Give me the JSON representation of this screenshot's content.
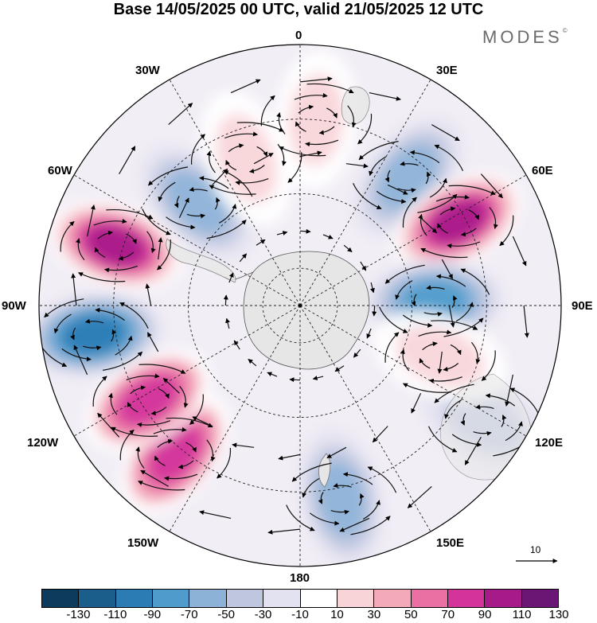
{
  "title": "Base 14/05/2025 00 UTC, valid 21/05/2025 12 UTC",
  "brand": "MODES",
  "brand_mark": "©",
  "longitude_labels": {
    "top": "0",
    "bottom": "180",
    "lon30w": "30W",
    "lon30e": "30E",
    "lon60w": "60W",
    "lon60e": "60E",
    "lon90w": "90W",
    "lon90e": "90E",
    "lon120w": "120W",
    "lon120e": "120E",
    "lon150w": "150W",
    "lon150e": "150E"
  },
  "reference_vector_label": "10",
  "colorbar": {
    "colors": [
      "#0c3b5e",
      "#1b5e8c",
      "#2b7bb5",
      "#4f9ccc",
      "#8db2d8",
      "#bfc6e0",
      "#e3e2f0",
      "#ffffff",
      "#f8d4d8",
      "#f3a9b8",
      "#ea70a4",
      "#d3339b",
      "#a71b89",
      "#6b1675"
    ],
    "tick_labels": [
      "-130",
      "-110",
      "-90",
      "-70",
      "-50",
      "-30",
      "-10",
      "10",
      "30",
      "50",
      "70",
      "90",
      "110",
      "130"
    ]
  },
  "anomaly_centers": [
    {
      "lon": -45,
      "lat": -51,
      "value": -60
    },
    {
      "lon": -72,
      "lat": -38,
      "value": 110
    },
    {
      "lon": -98,
      "lat": -34,
      "value": -100
    },
    {
      "lon": -140,
      "lat": -38,
      "value": 80
    },
    {
      "lon": -122,
      "lat": -42,
      "value": 80
    },
    {
      "lon": 168,
      "lat": -37,
      "value": -60
    },
    {
      "lon": 40,
      "lat": -45,
      "value": -60
    },
    {
      "lon": 62,
      "lat": -42,
      "value": 110
    },
    {
      "lon": 88,
      "lat": -54,
      "value": -80
    },
    {
      "lon": 122,
      "lat": -32,
      "value": -30
    },
    {
      "lon": 110,
      "lat": -50,
      "value": 30
    },
    {
      "lon": 5,
      "lat": -40,
      "value": 30
    },
    {
      "lon": -20,
      "lat": -48,
      "value": 20
    }
  ]
}
